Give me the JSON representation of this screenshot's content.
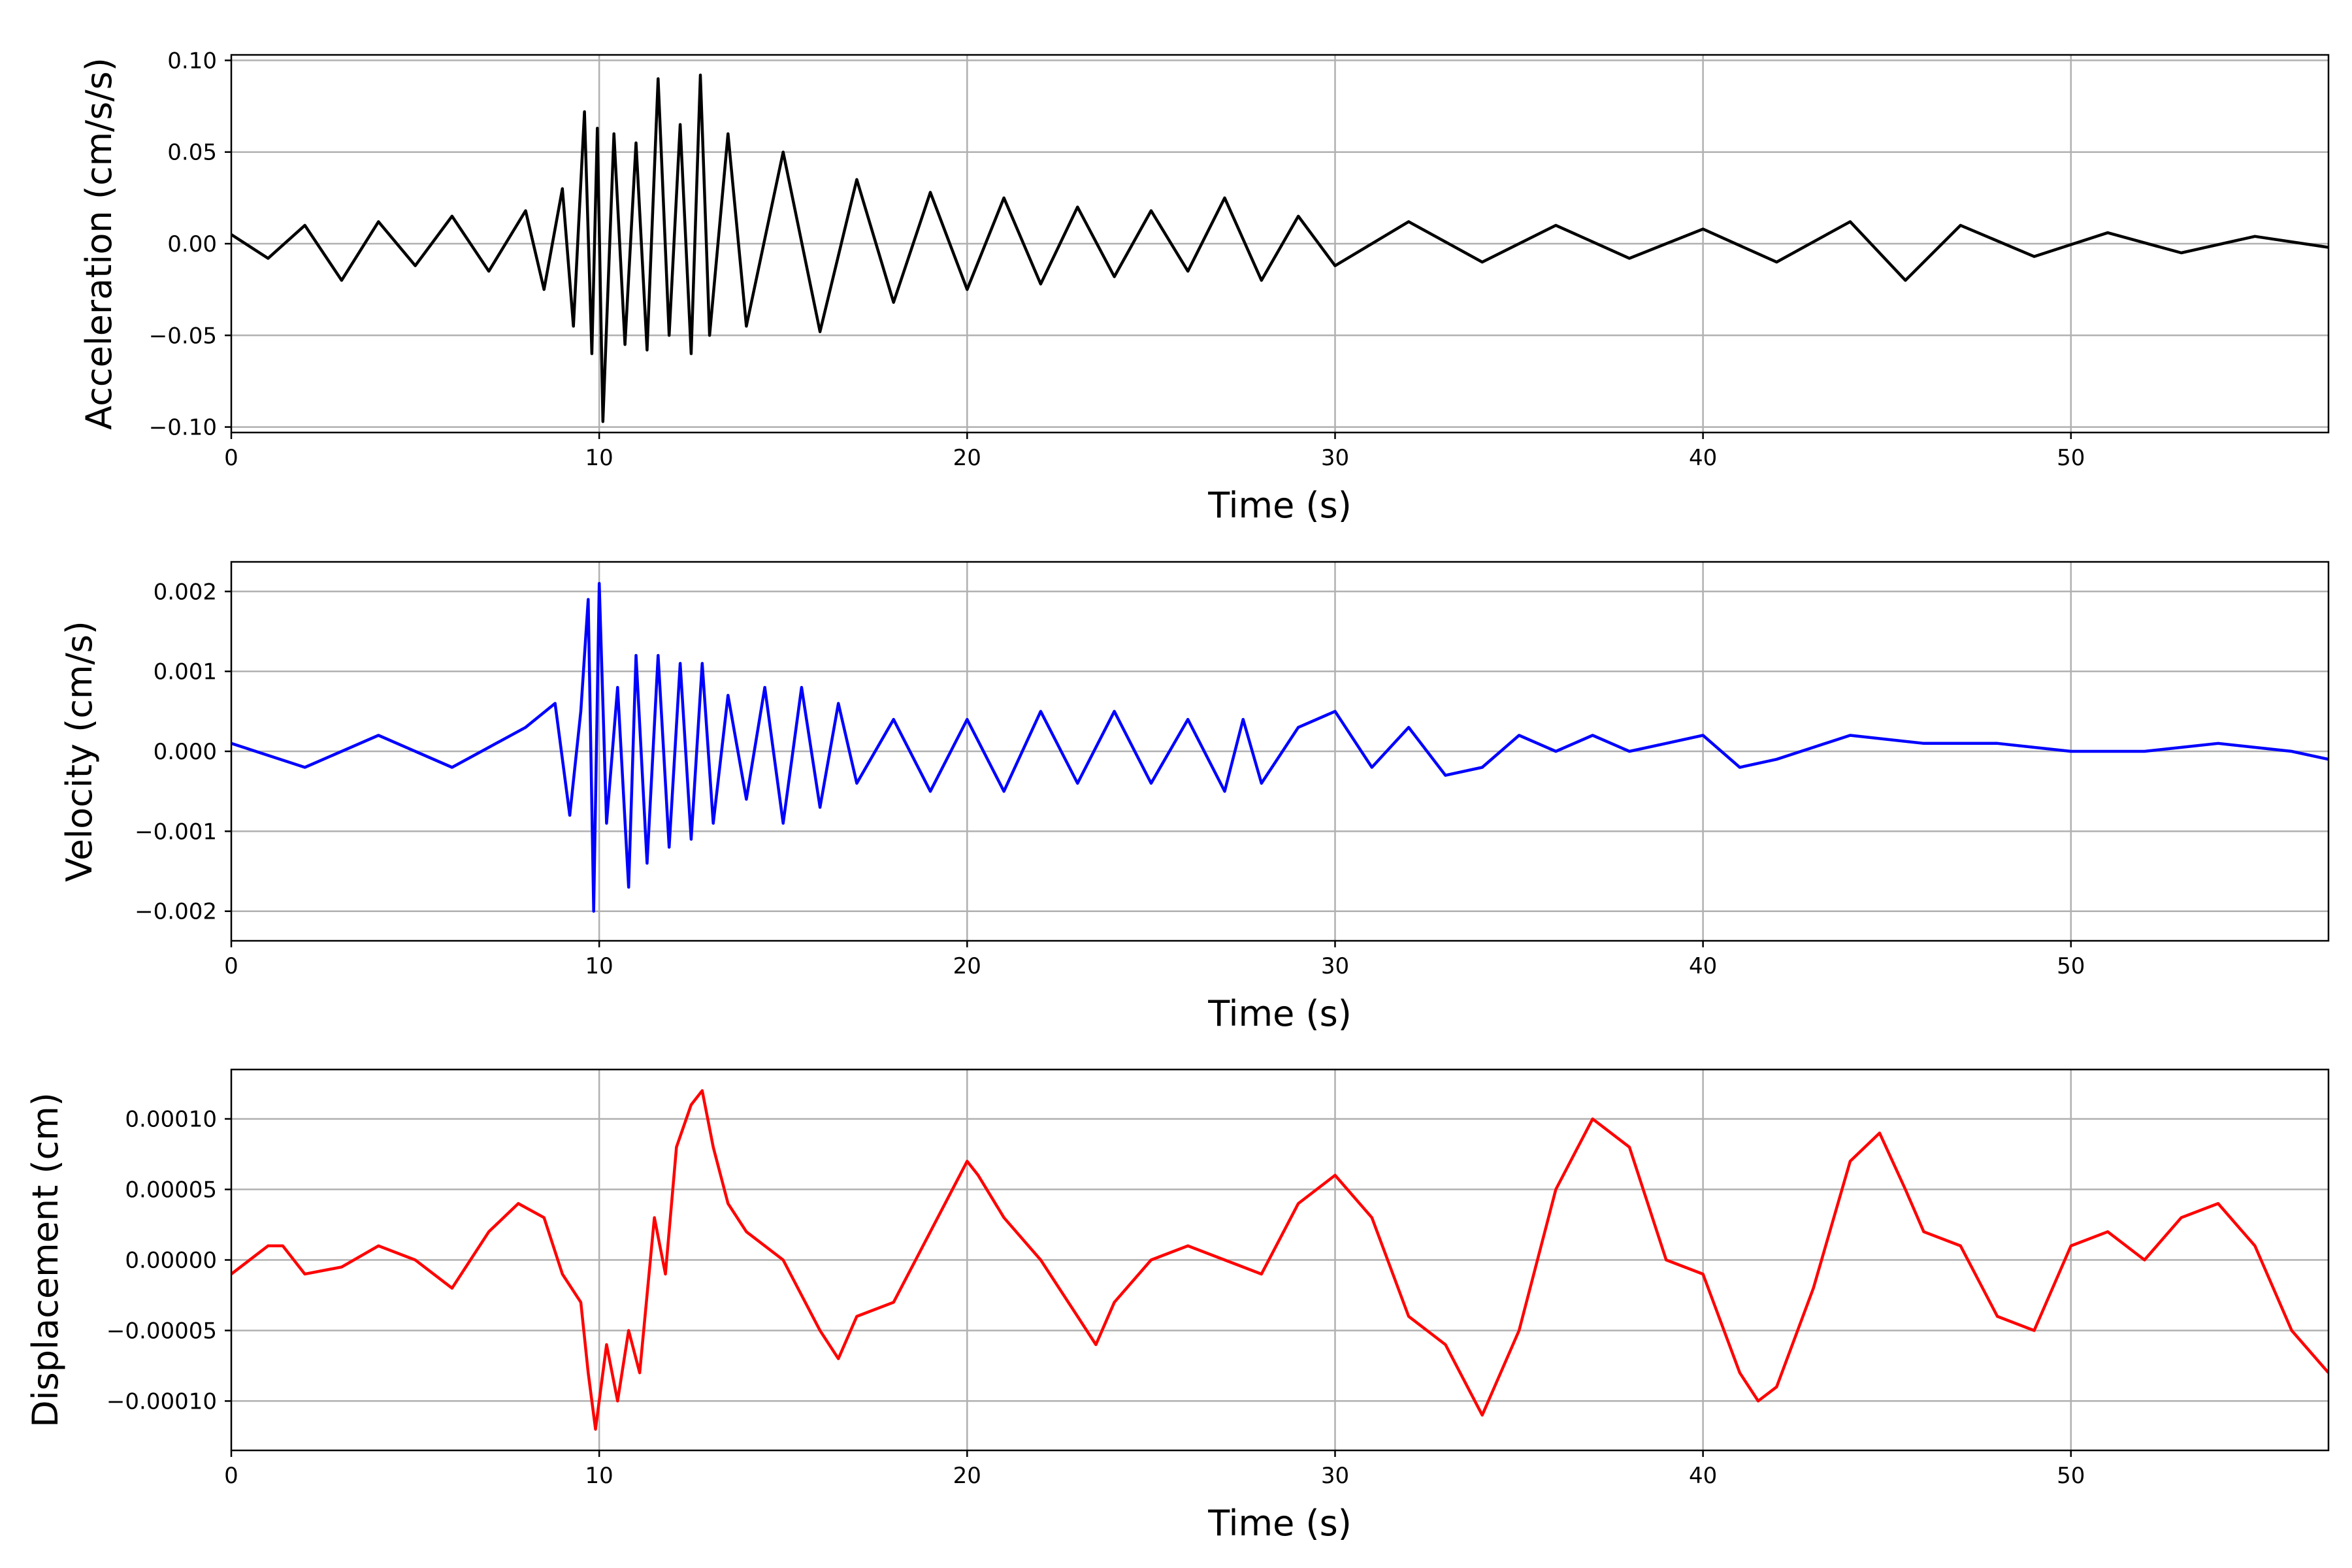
{
  "chart_data": [
    {
      "type": "line",
      "xlabel": "Time (s)",
      "ylabel": "Acceleration (cm/s/s)",
      "xlim": [
        0,
        57
      ],
      "ylim": [
        -0.103,
        0.103
      ],
      "xticks": [
        0,
        10,
        20,
        30,
        40,
        50
      ],
      "xtick_labels": [
        "0",
        "10",
        "20",
        "30",
        "40",
        "50"
      ],
      "yticks": [
        -0.1,
        -0.05,
        0.0,
        0.05,
        0.1
      ],
      "ytick_labels": [
        "−0.10",
        "−0.05",
        "0.00",
        "0.05",
        "0.10"
      ],
      "grid": true,
      "color": "#000000",
      "series": [
        {
          "x": [
            0,
            1,
            2,
            3,
            4,
            5,
            6,
            7,
            8,
            8.5,
            9,
            9.3,
            9.6,
            9.8,
            9.95,
            10.1,
            10.4,
            10.7,
            11,
            11.3,
            11.6,
            11.9,
            12.2,
            12.5,
            12.75,
            13,
            13.5,
            14,
            15,
            16,
            17,
            18,
            19,
            20,
            21,
            22,
            23,
            24,
            25,
            26,
            27,
            28,
            29,
            30,
            32,
            34,
            36,
            38,
            40,
            42,
            44,
            45.5,
            47,
            49,
            51,
            53,
            55,
            57
          ],
          "y": [
            0.005,
            -0.008,
            0.01,
            -0.02,
            0.012,
            -0.012,
            0.015,
            -0.015,
            0.018,
            -0.025,
            0.03,
            -0.045,
            0.072,
            -0.06,
            0.063,
            -0.097,
            0.06,
            -0.055,
            0.055,
            -0.058,
            0.09,
            -0.05,
            0.065,
            -0.06,
            0.092,
            -0.05,
            0.06,
            -0.045,
            0.05,
            -0.048,
            0.035,
            -0.032,
            0.028,
            -0.025,
            0.025,
            -0.022,
            0.02,
            -0.018,
            0.018,
            -0.015,
            0.025,
            -0.02,
            0.015,
            -0.012,
            0.012,
            -0.01,
            0.01,
            -0.008,
            0.008,
            -0.01,
            0.012,
            -0.02,
            0.01,
            -0.007,
            0.006,
            -0.005,
            0.004,
            -0.002
          ]
        }
      ]
    },
    {
      "type": "line",
      "xlabel": "Time (s)",
      "ylabel": "Velocity (cm/s)",
      "xlim": [
        0,
        57
      ],
      "ylim": [
        -0.00237,
        0.00237
      ],
      "xticks": [
        0,
        10,
        20,
        30,
        40,
        50
      ],
      "xtick_labels": [
        "0",
        "10",
        "20",
        "30",
        "40",
        "50"
      ],
      "yticks": [
        -0.002,
        -0.001,
        0.0,
        0.001,
        0.002
      ],
      "ytick_labels": [
        "−0.002",
        "−0.001",
        "0.000",
        "0.001",
        "0.002"
      ],
      "grid": true,
      "color": "#0000ff",
      "series": [
        {
          "x": [
            0,
            2,
            4,
            6,
            8,
            8.8,
            9.2,
            9.5,
            9.7,
            9.85,
            10,
            10.2,
            10.5,
            10.8,
            11,
            11.3,
            11.6,
            11.9,
            12.2,
            12.5,
            12.8,
            13.1,
            13.5,
            14,
            14.5,
            15,
            15.5,
            16,
            16.5,
            17,
            18,
            19,
            20,
            21,
            22,
            23,
            24,
            25,
            26,
            27,
            27.5,
            28,
            29,
            30,
            31,
            32,
            33,
            34,
            35,
            36,
            37,
            38,
            39,
            40,
            41,
            42,
            44,
            46,
            48,
            50,
            52,
            54,
            56,
            57
          ],
          "y": [
            0.0001,
            -0.0002,
            0.0002,
            -0.0002,
            0.0003,
            0.0006,
            -0.0008,
            0.0005,
            0.0019,
            -0.002,
            0.0021,
            -0.0009,
            0.0008,
            -0.0017,
            0.0012,
            -0.0014,
            0.0012,
            -0.0012,
            0.0011,
            -0.0011,
            0.0011,
            -0.0009,
            0.0007,
            -0.0006,
            0.0008,
            -0.0009,
            0.0008,
            -0.0007,
            0.0006,
            -0.0004,
            0.0004,
            -0.0005,
            0.0004,
            -0.0005,
            0.0005,
            -0.0004,
            0.0005,
            -0.0004,
            0.0004,
            -0.0005,
            0.0004,
            -0.0004,
            0.0003,
            0.0005,
            -0.0002,
            0.0003,
            -0.0003,
            -0.0002,
            0.0002,
            0.0,
            0.0002,
            0.0,
            0.0001,
            0.0002,
            -0.0002,
            -0.0001,
            0.0002,
            0.0001,
            0.0001,
            0.0,
            0.0,
            0.0001,
            0.0,
            -0.0001
          ]
        }
      ]
    },
    {
      "type": "line",
      "xlabel": "Time (s)",
      "ylabel": "Displacement (cm)",
      "xlim": [
        0,
        57
      ],
      "ylim": [
        -0.000135,
        0.000135
      ],
      "xticks": [
        0,
        10,
        20,
        30,
        40,
        50
      ],
      "xtick_labels": [
        "0",
        "10",
        "20",
        "30",
        "40",
        "50"
      ],
      "yticks": [
        -0.0001,
        -5e-05,
        0.0,
        5e-05,
        0.0001
      ],
      "ytick_labels": [
        "−0.00010",
        "−0.00005",
        "0.00000",
        "0.00005",
        "0.00010"
      ],
      "grid": true,
      "color": "#ff0000",
      "series": [
        {
          "x": [
            0,
            1,
            1.4,
            2,
            3,
            4,
            5,
            6,
            7,
            7.8,
            8.5,
            9,
            9.5,
            9.7,
            9.9,
            10.2,
            10.5,
            10.8,
            11.1,
            11.5,
            11.8,
            12.1,
            12.5,
            12.8,
            13.1,
            13.5,
            14,
            15,
            16,
            16.5,
            17,
            18,
            19,
            20,
            20.3,
            21,
            22,
            23,
            23.5,
            24,
            25,
            26,
            27,
            28,
            29,
            30,
            31,
            32,
            33,
            34,
            35,
            36,
            37,
            38,
            39,
            40,
            41,
            41.5,
            42,
            43,
            44,
            44.8,
            45.5,
            46,
            47,
            48,
            49,
            50,
            51,
            52,
            53,
            54,
            55,
            56,
            57
          ],
          "y": [
            -1e-05,
            1e-05,
            1e-05,
            -1e-05,
            -5e-06,
            1e-05,
            0.0,
            -2e-05,
            2e-05,
            4e-05,
            3e-05,
            -1e-05,
            -3e-05,
            -8e-05,
            -0.00012,
            -6e-05,
            -0.0001,
            -5e-05,
            -8e-05,
            3e-05,
            -1e-05,
            8e-05,
            0.00011,
            0.00012,
            8e-05,
            4e-05,
            2e-05,
            0.0,
            -5e-05,
            -7e-05,
            -4e-05,
            -3e-05,
            2e-05,
            7e-05,
            6e-05,
            3e-05,
            0.0,
            -4e-05,
            -6e-05,
            -3e-05,
            0.0,
            1e-05,
            0.0,
            -1e-05,
            4e-05,
            6e-05,
            3e-05,
            -4e-05,
            -6e-05,
            -0.00011,
            -5e-05,
            5e-05,
            0.0001,
            8e-05,
            0.0,
            -1e-05,
            -8e-05,
            -0.0001,
            -9e-05,
            -2e-05,
            7e-05,
            9e-05,
            5e-05,
            2e-05,
            1e-05,
            -4e-05,
            -5e-05,
            1e-05,
            2e-05,
            0.0,
            3e-05,
            4e-05,
            1e-05,
            -5e-05,
            -8e-05
          ]
        }
      ]
    }
  ]
}
